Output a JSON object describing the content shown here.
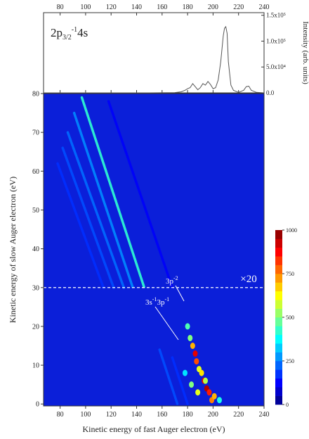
{
  "chart_data": [
    {
      "type": "line",
      "annotation": {
        "main": "2p",
        "sub": "3/2",
        "sup": "-1",
        "tail": "4s"
      },
      "ylabel": "Intensity (arb. units)",
      "x": [
        67,
        150,
        170,
        175,
        178,
        180,
        182,
        184,
        186,
        188,
        190,
        192,
        194,
        196,
        198,
        200,
        202,
        204,
        206,
        208,
        209,
        210,
        211,
        212,
        214,
        216,
        220,
        224,
        226,
        228,
        230,
        234,
        240
      ],
      "values": [
        0,
        0,
        500,
        2000,
        5000,
        8000,
        10000,
        18000,
        12000,
        6000,
        10000,
        18000,
        15000,
        22000,
        16000,
        8000,
        10000,
        25000,
        60000,
        110000,
        125000,
        128000,
        115000,
        60000,
        15000,
        5000,
        1000,
        5000,
        12000,
        13000,
        5000,
        1000,
        0
      ],
      "color": "#555555",
      "xlim": [
        67,
        240
      ],
      "xticks": [
        80,
        100,
        120,
        140,
        160,
        180,
        200,
        220,
        240
      ],
      "ylim": [
        0,
        155000
      ],
      "yticks": [
        {
          "value": 0,
          "label": "0.0"
        },
        {
          "value": 50000,
          "label": "5.0x10⁴"
        },
        {
          "value": 100000,
          "label": "1.0x10⁵"
        },
        {
          "value": 150000,
          "label": "1.5x10⁵"
        }
      ]
    },
    {
      "type": "heatmap",
      "xlabel": "Kinetic energy of fast Auger electron (eV)",
      "ylabel": "Kinetic energy of slow Auger electron (eV)",
      "xlim": [
        67,
        240
      ],
      "xticks": [
        80,
        100,
        120,
        140,
        160,
        180,
        200,
        220,
        240
      ],
      "ylim": [
        -0.5,
        80
      ],
      "yticks": [
        0,
        10,
        20,
        30,
        40,
        50,
        60,
        70,
        80
      ],
      "background": "#0b1fd9",
      "hline": 30,
      "scale_note": "×20",
      "peak_labels": [
        {
          "parts": [
            "3p",
            "-2"
          ]
        },
        {
          "parts": [
            "3s",
            "-1",
            "3p",
            "-1"
          ]
        }
      ],
      "stripes": [
        {
          "x": [
            97,
            146
          ],
          "y": [
            79,
            30
          ],
          "intensity": 420
        },
        {
          "x": [
            91,
            137
          ],
          "y": [
            75,
            30
          ],
          "intensity": 260
        },
        {
          "x": [
            86,
            130
          ],
          "y": [
            70,
            30
          ],
          "intensity": 230
        },
        {
          "x": [
            82,
            122
          ],
          "y": [
            66,
            30
          ],
          "intensity": 200
        },
        {
          "x": [
            78,
            114
          ],
          "y": [
            62,
            30
          ],
          "intensity": 170
        },
        {
          "x": [
            118,
            168
          ],
          "y": [
            78,
            30
          ],
          "intensity": 120
        },
        {
          "x": [
            158,
            172
          ],
          "y": [
            14,
            0
          ],
          "intensity": 200
        },
        {
          "x": [
            168,
            180
          ],
          "y": [
            12,
            0
          ],
          "intensity": 170
        }
      ],
      "spots": {
        "x": [
          180,
          182,
          184,
          186,
          187,
          189,
          191,
          193,
          195,
          197,
          199,
          183,
          188,
          205,
          178,
          201,
          194
        ],
        "y": [
          20,
          17,
          15,
          13,
          11,
          9,
          8,
          6,
          4,
          3,
          1,
          5,
          3,
          1,
          8,
          2,
          6
        ],
        "values": [
          450,
          500,
          700,
          900,
          800,
          600,
          650,
          900,
          950,
          850,
          750,
          500,
          600,
          400,
          350,
          700,
          550
        ]
      },
      "colorbar": {
        "lim": [
          0,
          1000
        ],
        "ticks": [
          0,
          250,
          500,
          750,
          1000
        ]
      }
    }
  ]
}
